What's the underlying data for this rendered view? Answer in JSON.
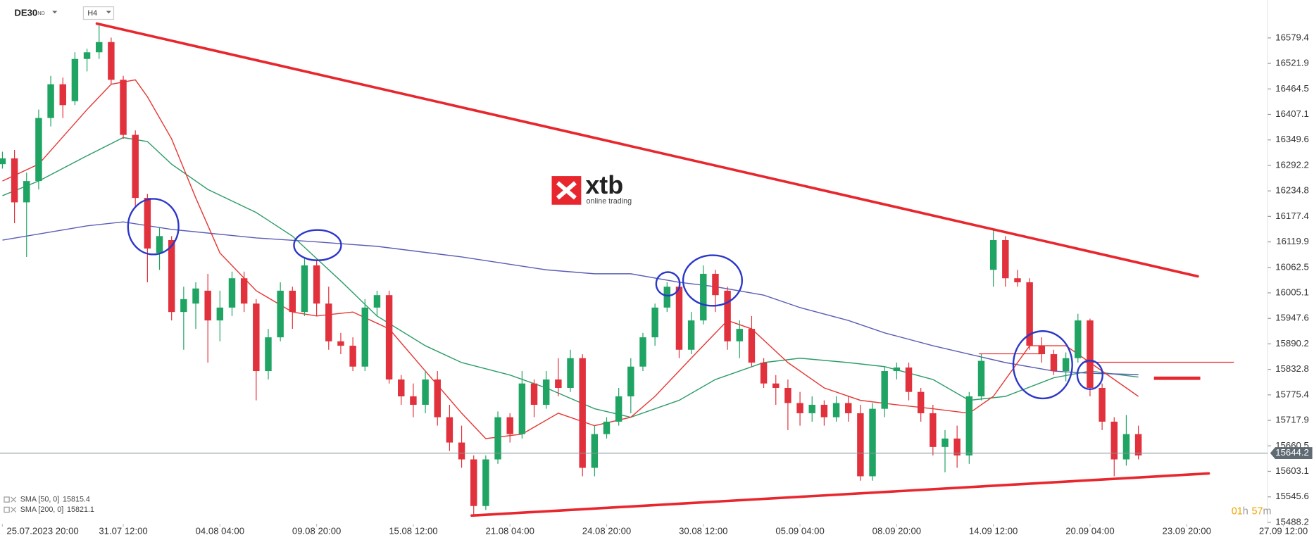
{
  "header": {
    "symbol": "DE30",
    "market": "IND",
    "timeframe": "H4"
  },
  "chart_data": {
    "type": "candlestick",
    "ylim": [
      15484.5,
      16664.8
    ],
    "yticks": [
      16579.4,
      16521.9,
      16464.5,
      16407.1,
      16349.6,
      16292.2,
      16234.8,
      16177.4,
      16119.9,
      16062.5,
      16005.1,
      15947.6,
      15890.2,
      15832.8,
      15775.4,
      15717.9,
      15660.5,
      15603.1,
      15545.6,
      15488.2
    ],
    "xlim": [
      -0.2,
      104.7
    ],
    "xticks": [
      {
        "value": 0,
        "label": "25.07.2023 20:00"
      },
      {
        "value": 10,
        "label": "31.07 12:00"
      },
      {
        "value": 18,
        "label": "04.08 04:00"
      },
      {
        "value": 26,
        "label": "09.08 20:00"
      },
      {
        "value": 34,
        "label": "15.08 12:00"
      },
      {
        "value": 42,
        "label": "21.08 04:00"
      },
      {
        "value": 50,
        "label": "24.08 20:00"
      },
      {
        "value": 58,
        "label": "30.08 12:00"
      },
      {
        "value": 66,
        "label": "05.09 04:00"
      },
      {
        "value": 74,
        "label": "08.09 20:00"
      },
      {
        "value": 82,
        "label": "14.09 12:00"
      },
      {
        "value": 90,
        "label": "20.09 04:00"
      },
      {
        "value": 98,
        "label": "23.09 20:00"
      },
      {
        "value": 106,
        "label": "27.09 12:00"
      }
    ],
    "up_color": "#1fa463",
    "down_color": "#e0313c",
    "candles": [
      [
        16295,
        16323,
        16285,
        16308
      ],
      [
        16308,
        16327,
        16162,
        16209
      ],
      [
        16209,
        16276,
        16086,
        16257
      ],
      [
        16257,
        16418,
        16238,
        16399
      ],
      [
        16399,
        16494,
        16380,
        16475
      ],
      [
        16475,
        16490,
        16399,
        16428
      ],
      [
        16437,
        16547,
        16428,
        16532
      ],
      [
        16532,
        16555,
        16504,
        16547
      ],
      [
        16547,
        16612,
        16532,
        16570
      ],
      [
        16570,
        16580,
        16475,
        16485
      ],
      [
        16485,
        16494,
        16352,
        16361
      ],
      [
        16361,
        16371,
        16200,
        16219
      ],
      [
        16219,
        16228,
        16029,
        16105
      ],
      [
        16095,
        16152,
        16057,
        16133
      ],
      [
        16124,
        16133,
        15943,
        15962
      ],
      [
        15962,
        16019,
        15877,
        15991
      ],
      [
        15981,
        16029,
        15924,
        16015
      ],
      [
        16010,
        16048,
        15848,
        15943
      ],
      [
        15943,
        16010,
        15896,
        15972
      ],
      [
        15972,
        16053,
        15953,
        16038
      ],
      [
        16038,
        16053,
        15962,
        15981
      ],
      [
        15981,
        15991,
        15763,
        15829
      ],
      [
        15829,
        15924,
        15810,
        15905
      ],
      [
        15905,
        16029,
        15896,
        16010
      ],
      [
        16010,
        16019,
        15924,
        15962
      ],
      [
        15962,
        16086,
        15953,
        16067
      ],
      [
        16067,
        16080,
        15953,
        15981
      ],
      [
        15981,
        16019,
        15877,
        15896
      ],
      [
        15896,
        15915,
        15867,
        15886
      ],
      [
        15886,
        15905,
        15829,
        15839
      ],
      [
        15839,
        15991,
        15829,
        15972
      ],
      [
        15972,
        16010,
        15953,
        16000
      ],
      [
        16000,
        16010,
        15801,
        15810
      ],
      [
        15810,
        15820,
        15753,
        15772
      ],
      [
        15772,
        15801,
        15725,
        15753
      ],
      [
        15753,
        15829,
        15734,
        15810
      ],
      [
        15810,
        15829,
        15706,
        15725
      ],
      [
        15725,
        15753,
        15649,
        15668
      ],
      [
        15668,
        15706,
        15611,
        15630
      ],
      [
        15630,
        15639,
        15502,
        15525
      ],
      [
        15525,
        15639,
        15516,
        15630
      ],
      [
        15630,
        15738,
        15620,
        15725
      ],
      [
        15725,
        15734,
        15668,
        15687
      ],
      [
        15687,
        15829,
        15677,
        15801
      ],
      [
        15801,
        15810,
        15725,
        15753
      ],
      [
        15753,
        15829,
        15744,
        15810
      ],
      [
        15810,
        15858,
        15772,
        15791
      ],
      [
        15791,
        15877,
        15782,
        15858
      ],
      [
        15858,
        15867,
        15592,
        15611
      ],
      [
        15611,
        15706,
        15592,
        15687
      ],
      [
        15687,
        15725,
        15677,
        15715
      ],
      [
        15715,
        15791,
        15706,
        15772
      ],
      [
        15772,
        15858,
        15734,
        15839
      ],
      [
        15839,
        15915,
        15829,
        15905
      ],
      [
        15905,
        15981,
        15886,
        15972
      ],
      [
        15972,
        16029,
        15962,
        16019
      ],
      [
        16019,
        16029,
        15858,
        15877
      ],
      [
        15877,
        15962,
        15867,
        15943
      ],
      [
        15943,
        16067,
        15934,
        16048
      ],
      [
        16048,
        16057,
        15962,
        16000
      ],
      [
        16010,
        16019,
        15877,
        15896
      ],
      [
        15896,
        15943,
        15858,
        15924
      ],
      [
        15924,
        15953,
        15839,
        15848
      ],
      [
        15848,
        15858,
        15791,
        15801
      ],
      [
        15801,
        15820,
        15753,
        15791
      ],
      [
        15791,
        15810,
        15696,
        15757
      ],
      [
        15757,
        15782,
        15706,
        15734
      ],
      [
        15734,
        15772,
        15715,
        15753
      ],
      [
        15753,
        15763,
        15706,
        15725
      ],
      [
        15725,
        15772,
        15715,
        15757
      ],
      [
        15757,
        15772,
        15715,
        15734
      ],
      [
        15734,
        15753,
        15582,
        15592
      ],
      [
        15592,
        15757,
        15582,
        15744
      ],
      [
        15744,
        15839,
        15725,
        15829
      ],
      [
        15829,
        15848,
        15810,
        15837
      ],
      [
        15837,
        15848,
        15763,
        15782
      ],
      [
        15782,
        15791,
        15715,
        15734
      ],
      [
        15734,
        15753,
        15639,
        15658
      ],
      [
        15658,
        15696,
        15601,
        15677
      ],
      [
        15677,
        15706,
        15611,
        15639
      ],
      [
        15639,
        15782,
        15620,
        15772
      ],
      [
        15772,
        15867,
        15763,
        15852
      ],
      [
        16057,
        16148,
        16019,
        16124
      ],
      [
        16124,
        16133,
        16019,
        16038
      ],
      [
        16038,
        16057,
        16019,
        16029
      ],
      [
        16029,
        16038,
        15877,
        15886
      ],
      [
        15886,
        15905,
        15848,
        15867
      ],
      [
        15867,
        15877,
        15820,
        15829
      ],
      [
        15829,
        15871,
        15806,
        15858
      ],
      [
        15858,
        15958,
        15848,
        15943
      ],
      [
        15943,
        15947,
        15772,
        15791
      ],
      [
        15791,
        15801,
        15696,
        15715
      ],
      [
        15715,
        15725,
        15592,
        15630
      ],
      [
        15630,
        15730,
        15616,
        15687
      ],
      [
        15687,
        15706,
        15630,
        15639
      ]
    ],
    "series": [
      {
        "name": "SMA [50, 0]",
        "color": "#2e9d6a",
        "last": 15815.4,
        "x": [
          0,
          3,
          7,
          10,
          12,
          14,
          17,
          21,
          24,
          28,
          31,
          35,
          38,
          42,
          45,
          49,
          52,
          56,
          59,
          63,
          66,
          70,
          73,
          77,
          80,
          83,
          87,
          90,
          94
        ],
        "values": [
          16224,
          16257,
          16314,
          16355,
          16346,
          16295,
          16238,
          16186,
          16133,
          16032,
          15953,
          15886,
          15848,
          15820,
          15791,
          15744,
          15725,
          15763,
          15810,
          15848,
          15858,
          15848,
          15839,
          15810,
          15763,
          15772,
          15814,
          15829,
          15815.4
        ]
      },
      {
        "name": "SMA [200, 0]",
        "color": "#5a5db5",
        "last": 15821.1,
        "x": [
          0,
          7,
          10,
          14,
          21,
          26,
          31,
          38,
          45,
          49,
          52,
          56,
          59,
          63,
          66,
          70,
          73,
          77,
          80,
          83,
          87,
          90,
          94
        ],
        "values": [
          16124,
          16156,
          16165,
          16148,
          16129,
          16120,
          16110,
          16086,
          16057,
          16048,
          16048,
          16029,
          16019,
          16000,
          15972,
          15943,
          15915,
          15886,
          15867,
          15848,
          15829,
          15824,
          15821.1
        ]
      },
      {
        "color": "#e53935",
        "x": [
          0,
          3,
          7,
          9,
          11,
          12,
          14,
          16,
          18,
          21,
          24,
          26,
          29,
          32,
          35,
          38,
          40,
          43,
          46,
          49,
          52,
          54,
          57,
          60,
          62,
          65,
          68,
          71,
          74,
          77,
          80,
          82,
          85,
          88,
          90,
          94
        ],
        "values": [
          16257,
          16295,
          16418,
          16475,
          16485,
          16447,
          16352,
          16219,
          16095,
          16010,
          15962,
          15953,
          15962,
          15924,
          15829,
          15734,
          15677,
          15687,
          15734,
          15706,
          15725,
          15772,
          15858,
          15943,
          15924,
          15848,
          15791,
          15763,
          15753,
          15744,
          15734,
          15772,
          15886,
          15886,
          15848,
          15772
        ]
      }
    ],
    "last_price": 15644.2,
    "countdown": {
      "hours": "01",
      "h": "h",
      "minutes": "57",
      "m": "m"
    }
  }
}
